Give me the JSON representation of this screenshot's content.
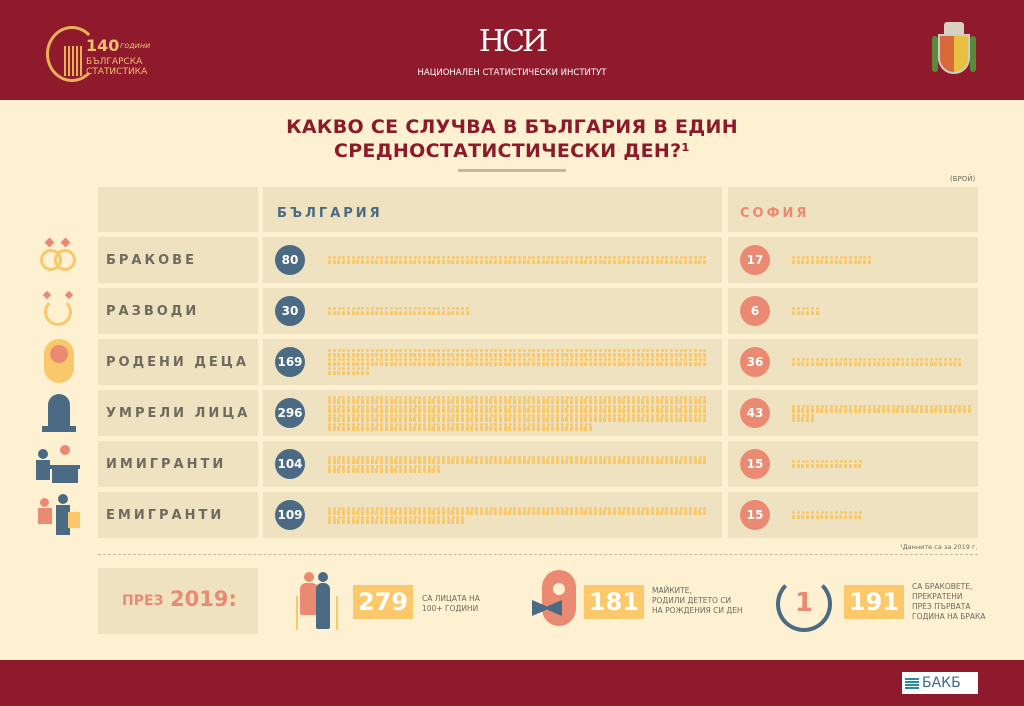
{
  "header": {
    "left_logo": {
      "number": "140",
      "word": "години",
      "line1": "БЪЛГАРСКА",
      "line2": "СТАТИСТИКА"
    },
    "center_logo": {
      "monogram": "НСИ",
      "name": "НАЦИОНАЛЕН СТАТИСТИЧЕСКИ ИНСТИТУТ"
    },
    "right_logo": "coat-of-arms-sofia"
  },
  "title": {
    "line1": "КАКВО СЕ СЛУЧВА В БЪЛГАРИЯ В ЕДИН",
    "line2": "СРЕДНОСТАТИСТИЧЕСКИ ДЕН?¹"
  },
  "unit": "(БРОЙ)",
  "colors": {
    "band": "#8f1a2b",
    "background": "#fdf1d2",
    "bulgaria": "#4b6a83",
    "sofia": "#eb8a72",
    "pictogram": "#f8c86a"
  },
  "chart_data": {
    "type": "pictogram",
    "columns": [
      "БЪЛГАРИЯ",
      "СОФИЯ"
    ],
    "categories": [
      {
        "label": "БРАКОВЕ",
        "icon": "rings-icon",
        "bulgaria": 80,
        "sofia": 17
      },
      {
        "label": "РАЗВОДИ",
        "icon": "broken-ring-icon",
        "bulgaria": 30,
        "sofia": 6
      },
      {
        "label": "РОДЕНИ ДЕЦА",
        "icon": "baby-icon",
        "bulgaria": 169,
        "sofia": 36
      },
      {
        "label": "УМРЕЛИ ЛИЦА",
        "icon": "tombstone-icon",
        "bulgaria": 296,
        "sofia": 43
      },
      {
        "label": "ИМИГРАНТИ",
        "icon": "immigration-desk-icon",
        "bulgaria": 104,
        "sofia": 15
      },
      {
        "label": "ЕМИГРАНТИ",
        "icon": "traveler-icon",
        "bulgaria": 109,
        "sofia": 15
      }
    ]
  },
  "footnote": "¹Данните са за 2019 г.",
  "year_section": {
    "label_prefix": "ПРЕЗ",
    "label_year": "2019:",
    "facts": [
      {
        "icon": "elderly-couple-icon",
        "value": "279",
        "text": [
          "СА ЛИЦАТА НА",
          "100+ ГОДИНИ"
        ]
      },
      {
        "icon": "baby-bow-icon",
        "value": "181",
        "text": [
          "МАЙКИТЕ,",
          "РОДИЛИ ДЕТЕТО СИ",
          "НА РОЖДЕНИЯ СИ ДЕН"
        ]
      },
      {
        "icon": "broken-ring-one-icon",
        "value": "191",
        "badge": "1",
        "text": [
          "СА БРАКОВЕТЕ,",
          "ПРЕКРАТЕНИ",
          "ПРЕЗ ПЪРВАТА",
          "ГОДИНА НА БРАКА"
        ]
      }
    ]
  },
  "footer_logo": "БАКБ"
}
